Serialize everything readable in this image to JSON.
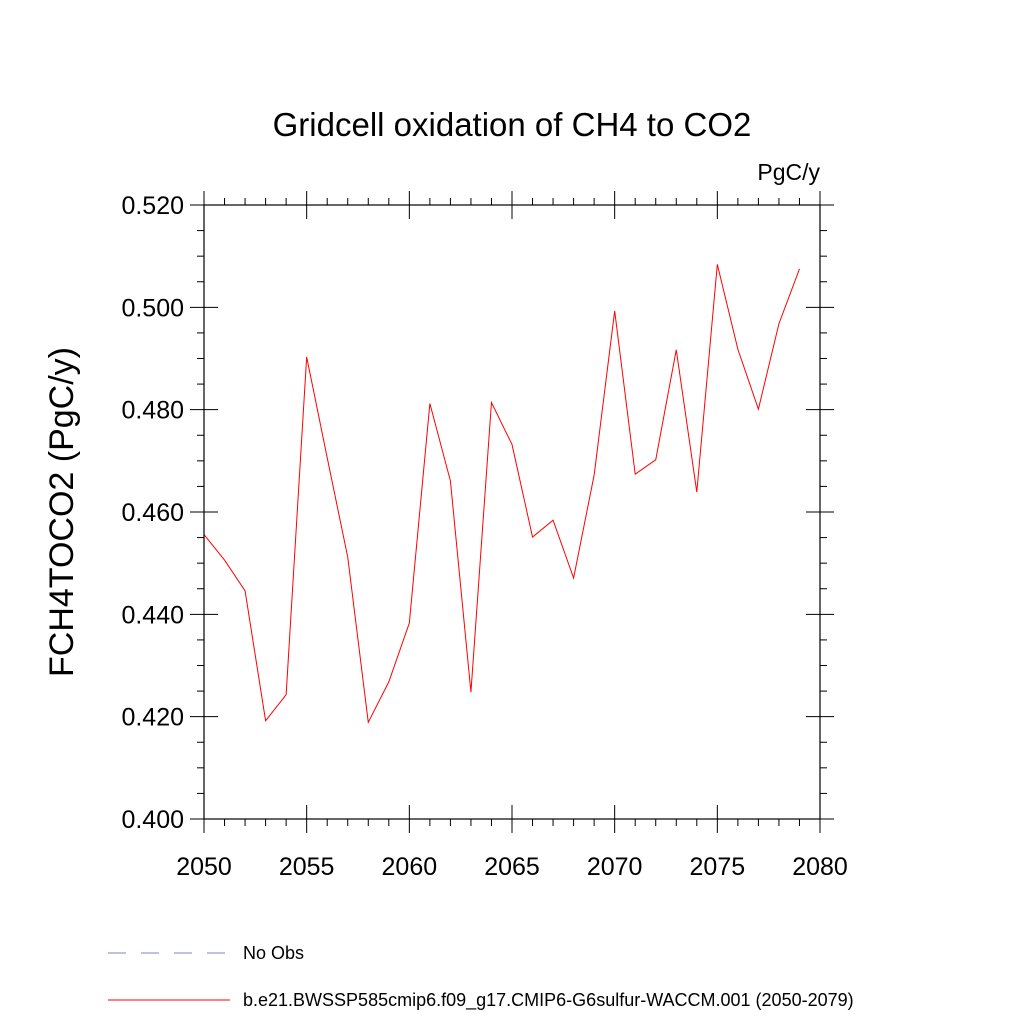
{
  "chart_data": {
    "type": "line",
    "title": "Gridcell oxidation of CH4 to CO2",
    "units": "PgC/y",
    "xlabel": "",
    "ylabel": "FCH4TOCO2  (PgC/y)",
    "xlim": [
      2050,
      2080
    ],
    "ylim": [
      0.4,
      0.52
    ],
    "x_ticks": [
      2050,
      2055,
      2060,
      2065,
      2070,
      2075,
      2080
    ],
    "x_tick_labels": [
      "2050",
      "2055",
      "2060",
      "2065",
      "2070",
      "2075",
      "2080"
    ],
    "y_ticks": [
      0.4,
      0.42,
      0.44,
      0.46,
      0.48,
      0.5,
      0.52
    ],
    "y_tick_labels": [
      "0.400",
      "0.420",
      "0.440",
      "0.460",
      "0.480",
      "0.500",
      "0.520"
    ],
    "y_minor_step": 0.005,
    "x_minor_step": 1,
    "grid": false,
    "legend_position": "bottom",
    "series": [
      {
        "name": "b.e21.BWSSP585cmip6.f09_g17.CMIP6-G6sulfur-WACCM.001 (2050-2079)",
        "color": "#ff0000",
        "style": "solid",
        "x": [
          2050,
          2051,
          2052,
          2053,
          2054,
          2055,
          2056,
          2057,
          2058,
          2059,
          2060,
          2061,
          2062,
          2063,
          2064,
          2065,
          2066,
          2067,
          2068,
          2069,
          2070,
          2071,
          2072,
          2073,
          2074,
          2075,
          2076,
          2077,
          2078,
          2079
        ],
        "y": [
          0.4556,
          0.4506,
          0.4446,
          0.4192,
          0.4243,
          0.4903,
          0.4706,
          0.4512,
          0.4189,
          0.4268,
          0.4383,
          0.4812,
          0.4661,
          0.4248,
          0.4814,
          0.4732,
          0.4551,
          0.4584,
          0.4471,
          0.4672,
          0.4993,
          0.4674,
          0.4702,
          0.4917,
          0.4639,
          0.5084,
          0.4918,
          0.4801,
          0.4968,
          0.5075
        ]
      }
    ],
    "legend": [
      {
        "label": "No Obs",
        "color": "#8080c0",
        "style": "dashed"
      },
      {
        "label": "b.e21.BWSSP585cmip6.f09_g17.CMIP6-G6sulfur-WACCM.001 (2050-2079)",
        "color": "#ff0000",
        "style": "solid"
      }
    ]
  }
}
